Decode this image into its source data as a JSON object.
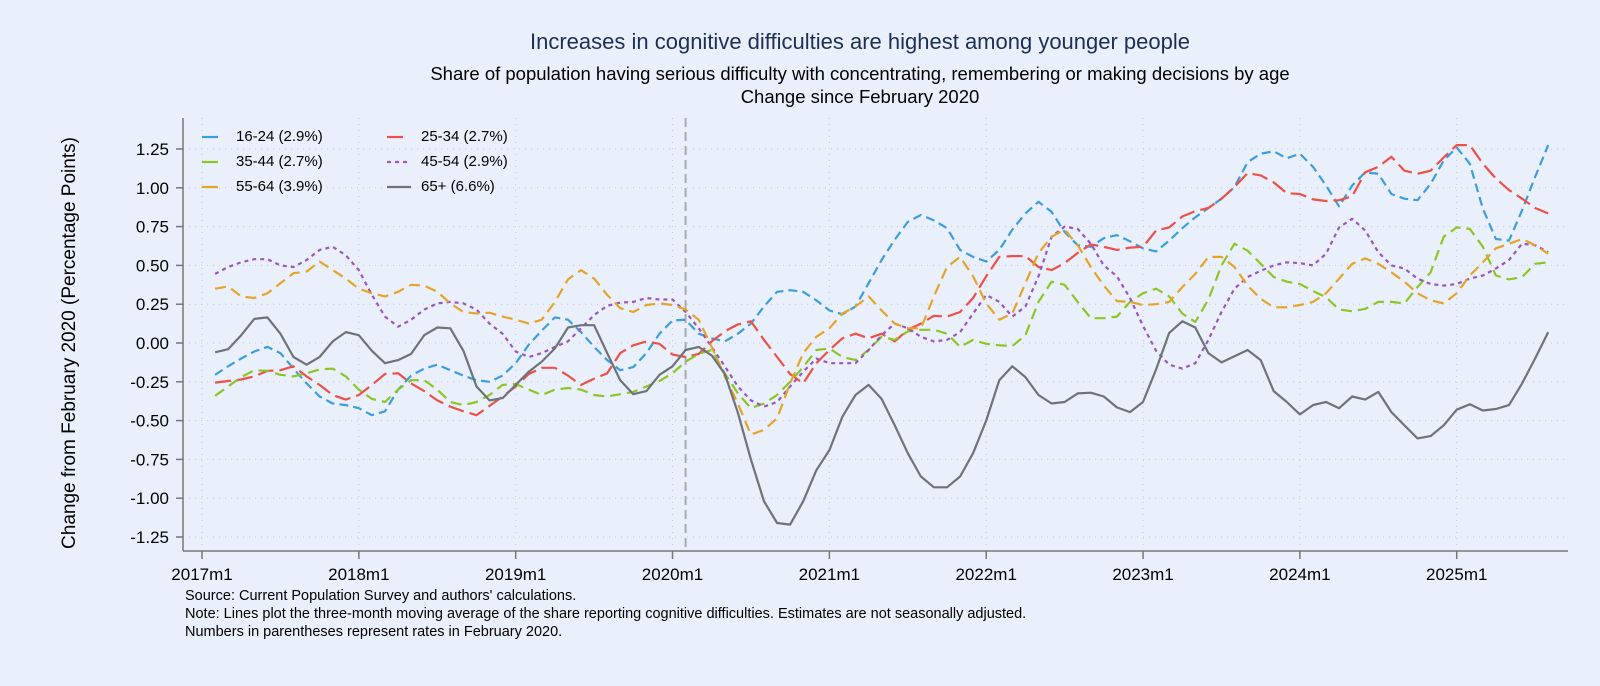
{
  "chart_data": {
    "type": "line",
    "title": "Increases in cognitive difficulties are highest among younger people",
    "subtitle": "Share of population having serious difficulty with concentrating, remembering or making decisions by age",
    "subtitle2": "Change since February 2020",
    "ylabel": "Change from February 2020 (Percentage Points)",
    "xlabel": "",
    "x_start": "2017m2",
    "x_end": "2025m8",
    "x_frequency": "monthly",
    "xticks": [
      "2017m1",
      "2018m1",
      "2019m1",
      "2020m1",
      "2021m1",
      "2022m1",
      "2023m1",
      "2024m1",
      "2025m1"
    ],
    "yticks": [
      "1.25",
      "1.00",
      "0.75",
      "0.50",
      "0.25",
      "0.00",
      "-0.25",
      "-0.50",
      "-0.75",
      "-1.00",
      "-1.25"
    ],
    "ylim": [
      -1.25,
      1.25
    ],
    "grid": true,
    "reference_line": "2020m2",
    "legend_position": "top-left",
    "series": [
      {
        "name": "16-24 (2.9%)",
        "color": "#3b9ddd",
        "dash": "9 5",
        "values": [
          -0.205,
          -0.15,
          -0.1,
          -0.055,
          -0.025,
          -0.065,
          -0.165,
          -0.26,
          -0.345,
          -0.39,
          -0.4,
          -0.42,
          -0.465,
          -0.44,
          -0.3,
          -0.21,
          -0.165,
          -0.14,
          -0.175,
          -0.21,
          -0.24,
          -0.25,
          -0.21,
          -0.13,
          -0.01,
          0.08,
          0.165,
          0.15,
          0.07,
          -0.025,
          -0.11,
          -0.175,
          -0.155,
          -0.065,
          0.06,
          0.145,
          0.15,
          0.06,
          0.03,
          0.01,
          0.06,
          0.125,
          0.235,
          0.33,
          0.34,
          0.33,
          0.275,
          0.21,
          0.185,
          0.235,
          0.385,
          0.535,
          0.665,
          0.78,
          0.825,
          0.79,
          0.74,
          0.6,
          0.555,
          0.525,
          0.6,
          0.73,
          0.835,
          0.91,
          0.845,
          0.715,
          0.63,
          0.62,
          0.675,
          0.695,
          0.655,
          0.61,
          0.59,
          0.66,
          0.74,
          0.81,
          0.87,
          0.93,
          1.005,
          1.165,
          1.22,
          1.235,
          1.19,
          1.22,
          1.135,
          1.015,
          0.88,
          1.015,
          1.1,
          1.09,
          0.96,
          0.93,
          0.92,
          1.025,
          1.175,
          1.26,
          1.155,
          0.865,
          0.67,
          0.66,
          0.855,
          1.07,
          1.275
        ]
      },
      {
        "name": "25-34 (2.7%)",
        "color": "#ec5046",
        "dash": "16 6",
        "values": [
          -0.255,
          -0.245,
          -0.235,
          -0.215,
          -0.18,
          -0.175,
          -0.15,
          -0.215,
          -0.27,
          -0.335,
          -0.365,
          -0.335,
          -0.27,
          -0.2,
          -0.195,
          -0.26,
          -0.31,
          -0.37,
          -0.41,
          -0.44,
          -0.465,
          -0.405,
          -0.345,
          -0.28,
          -0.2,
          -0.16,
          -0.16,
          -0.21,
          -0.27,
          -0.23,
          -0.195,
          -0.065,
          -0.015,
          0.01,
          -0.005,
          -0.075,
          -0.09,
          -0.07,
          0.01,
          0.075,
          0.12,
          0.14,
          0.02,
          -0.09,
          -0.2,
          -0.26,
          -0.13,
          -0.045,
          0.03,
          0.06,
          0.03,
          0.06,
          0.01,
          0.085,
          0.125,
          0.175,
          0.17,
          0.2,
          0.29,
          0.43,
          0.555,
          0.56,
          0.56,
          0.49,
          0.47,
          0.515,
          0.58,
          0.635,
          0.62,
          0.6,
          0.615,
          0.62,
          0.725,
          0.745,
          0.815,
          0.85,
          0.87,
          0.93,
          1.005,
          1.095,
          1.08,
          1.035,
          0.965,
          0.96,
          0.925,
          0.915,
          0.92,
          0.945,
          1.1,
          1.135,
          1.2,
          1.11,
          1.09,
          1.11,
          1.195,
          1.275,
          1.275,
          1.155,
          1.06,
          0.985,
          0.93,
          0.87,
          0.835
        ]
      },
      {
        "name": "35-44 (2.7%)",
        "color": "#8cc524",
        "dash": "11 6",
        "values": [
          -0.34,
          -0.28,
          -0.22,
          -0.175,
          -0.18,
          -0.205,
          -0.215,
          -0.195,
          -0.17,
          -0.165,
          -0.215,
          -0.3,
          -0.36,
          -0.38,
          -0.3,
          -0.24,
          -0.24,
          -0.3,
          -0.38,
          -0.4,
          -0.38,
          -0.335,
          -0.27,
          -0.265,
          -0.3,
          -0.335,
          -0.3,
          -0.29,
          -0.3,
          -0.335,
          -0.345,
          -0.33,
          -0.315,
          -0.28,
          -0.245,
          -0.195,
          -0.12,
          -0.07,
          -0.045,
          -0.195,
          -0.325,
          -0.42,
          -0.39,
          -0.335,
          -0.25,
          -0.155,
          -0.045,
          -0.035,
          -0.09,
          -0.11,
          -0.045,
          0.04,
          0.02,
          0.075,
          0.085,
          0.085,
          0.06,
          -0.025,
          0.02,
          -0.005,
          -0.015,
          -0.02,
          0.05,
          0.265,
          0.395,
          0.375,
          0.265,
          0.16,
          0.16,
          0.17,
          0.265,
          0.32,
          0.35,
          0.3,
          0.19,
          0.135,
          0.28,
          0.5,
          0.64,
          0.595,
          0.51,
          0.425,
          0.395,
          0.38,
          0.335,
          0.295,
          0.215,
          0.205,
          0.22,
          0.265,
          0.265,
          0.255,
          0.36,
          0.455,
          0.685,
          0.745,
          0.735,
          0.62,
          0.435,
          0.41,
          0.425,
          0.51,
          0.52
        ]
      },
      {
        "name": "45-54 (2.9%)",
        "color": "#9b55be",
        "dash": "4 4",
        "values": [
          0.445,
          0.49,
          0.52,
          0.54,
          0.54,
          0.5,
          0.49,
          0.535,
          0.6,
          0.62,
          0.565,
          0.47,
          0.31,
          0.17,
          0.105,
          0.15,
          0.215,
          0.255,
          0.265,
          0.255,
          0.215,
          0.125,
          0.06,
          -0.055,
          -0.09,
          -0.065,
          -0.025,
          0.01,
          0.095,
          0.18,
          0.24,
          0.26,
          0.265,
          0.29,
          0.28,
          0.28,
          0.2,
          0.095,
          -0.025,
          -0.15,
          -0.28,
          -0.37,
          -0.41,
          -0.38,
          -0.28,
          -0.185,
          -0.1,
          -0.13,
          -0.13,
          -0.13,
          -0.045,
          0.05,
          0.125,
          0.095,
          0.04,
          0.01,
          0.02,
          0.07,
          0.19,
          0.31,
          0.265,
          0.17,
          0.235,
          0.43,
          0.685,
          0.75,
          0.735,
          0.64,
          0.5,
          0.43,
          0.29,
          0.11,
          -0.05,
          -0.14,
          -0.165,
          -0.13,
          0.02,
          0.2,
          0.35,
          0.425,
          0.465,
          0.5,
          0.52,
          0.515,
          0.5,
          0.575,
          0.745,
          0.8,
          0.725,
          0.585,
          0.5,
          0.48,
          0.415,
          0.38,
          0.37,
          0.38,
          0.415,
          0.435,
          0.48,
          0.535,
          0.64,
          0.63,
          0.585
        ]
      },
      {
        "name": "55-64 (3.9%)",
        "color": "#e3a427",
        "dash": "11 6",
        "values": [
          0.35,
          0.365,
          0.3,
          0.29,
          0.32,
          0.385,
          0.45,
          0.46,
          0.525,
          0.47,
          0.415,
          0.35,
          0.32,
          0.3,
          0.33,
          0.375,
          0.37,
          0.33,
          0.255,
          0.2,
          0.19,
          0.195,
          0.17,
          0.15,
          0.125,
          0.15,
          0.265,
          0.41,
          0.47,
          0.415,
          0.31,
          0.225,
          0.2,
          0.245,
          0.255,
          0.245,
          0.215,
          0.15,
          -0.025,
          -0.215,
          -0.39,
          -0.59,
          -0.56,
          -0.485,
          -0.26,
          -0.065,
          0.04,
          0.095,
          0.19,
          0.235,
          0.3,
          0.21,
          0.125,
          0.095,
          0.095,
          0.3,
          0.49,
          0.555,
          0.43,
          0.255,
          0.15,
          0.19,
          0.385,
          0.58,
          0.685,
          0.73,
          0.63,
          0.49,
          0.37,
          0.27,
          0.265,
          0.245,
          0.25,
          0.265,
          0.36,
          0.445,
          0.555,
          0.555,
          0.49,
          0.37,
          0.285,
          0.23,
          0.23,
          0.245,
          0.265,
          0.32,
          0.415,
          0.51,
          0.545,
          0.51,
          0.455,
          0.395,
          0.32,
          0.275,
          0.255,
          0.32,
          0.435,
          0.52,
          0.61,
          0.64,
          0.67,
          0.63,
          0.575
        ]
      },
      {
        "name": "65+ (6.6%)",
        "color": "#6e7378",
        "dash": "",
        "values": [
          -0.06,
          -0.04,
          0.05,
          0.155,
          0.165,
          0.06,
          -0.09,
          -0.14,
          -0.09,
          0.01,
          0.07,
          0.05,
          -0.05,
          -0.13,
          -0.11,
          -0.07,
          0.05,
          0.1,
          0.095,
          -0.05,
          -0.28,
          -0.37,
          -0.355,
          -0.27,
          -0.185,
          -0.12,
          -0.035,
          0.1,
          0.115,
          0.115,
          -0.065,
          -0.24,
          -0.33,
          -0.31,
          -0.205,
          -0.15,
          -0.045,
          -0.025,
          -0.08,
          -0.2,
          -0.45,
          -0.75,
          -1.02,
          -1.16,
          -1.17,
          -1.02,
          -0.82,
          -0.69,
          -0.475,
          -0.335,
          -0.27,
          -0.36,
          -0.53,
          -0.71,
          -0.86,
          -0.93,
          -0.93,
          -0.86,
          -0.71,
          -0.5,
          -0.24,
          -0.15,
          -0.22,
          -0.335,
          -0.39,
          -0.38,
          -0.325,
          -0.32,
          -0.345,
          -0.415,
          -0.445,
          -0.38,
          -0.17,
          0.065,
          0.14,
          0.1,
          -0.065,
          -0.125,
          -0.085,
          -0.045,
          -0.11,
          -0.31,
          -0.38,
          -0.46,
          -0.4,
          -0.38,
          -0.42,
          -0.345,
          -0.365,
          -0.315,
          -0.445,
          -0.53,
          -0.615,
          -0.6,
          -0.53,
          -0.43,
          -0.395,
          -0.435,
          -0.425,
          -0.4,
          -0.26,
          -0.1,
          0.07
        ]
      }
    ]
  },
  "notes": [
    "Source: Current Population Survey and authors' calculations.",
    "Note: Lines plot the three-month moving average of the share reporting cognitive difficulties. Estimates are not seasonally adjusted.",
    "Numbers in parentheses represent rates in February 2020."
  ]
}
